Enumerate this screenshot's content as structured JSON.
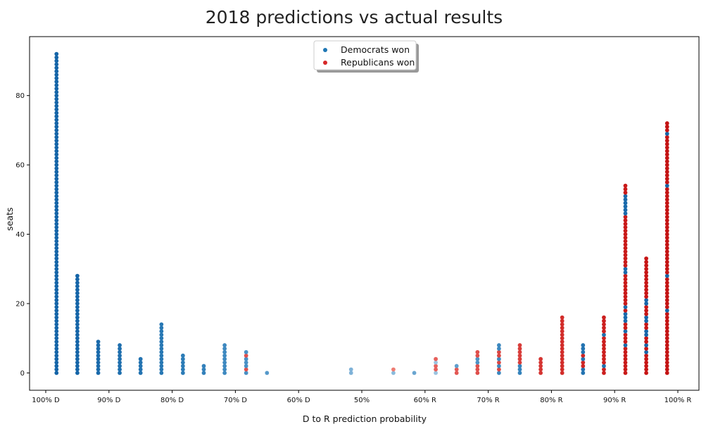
{
  "chart_data": {
    "type": "scatter",
    "title": "2018 predictions vs actual results",
    "xlabel": "D to R prediction probability",
    "ylabel": "seats",
    "x_tick_labels": [
      "100% D",
      "90% D",
      "80% D",
      "70% D",
      "60% D",
      "50%",
      "60% R",
      "70% R",
      "80% R",
      "90% R",
      "100% R"
    ],
    "y_ticks": [
      0,
      20,
      40,
      60,
      80
    ],
    "xlim": [
      0,
      100
    ],
    "ylim": [
      -5,
      97
    ],
    "legend": {
      "position": "top-center",
      "entries": [
        {
          "label": "Democrats won",
          "color": "#1f77b4"
        },
        {
          "label": "Republicans won",
          "color": "#d62728"
        }
      ]
    },
    "columns": [
      {
        "x": 1.7,
        "max_seat": 92,
        "dem_color": "#1565a8",
        "rep_color": null,
        "rep_seats": []
      },
      {
        "x": 5.0,
        "max_seat": 28,
        "dem_color": "#1565a8",
        "rep_color": null,
        "rep_seats": []
      },
      {
        "x": 8.3,
        "max_seat": 9,
        "dem_color": "#1a6aab",
        "rep_color": null,
        "rep_seats": []
      },
      {
        "x": 11.7,
        "max_seat": 8,
        "dem_color": "#1f6fae",
        "rep_color": null,
        "rep_seats": []
      },
      {
        "x": 15.0,
        "max_seat": 4,
        "dem_color": "#2373b1",
        "rep_color": null,
        "rep_seats": []
      },
      {
        "x": 18.3,
        "max_seat": 14,
        "dem_color": "#2878b4",
        "rep_color": null,
        "rep_seats": []
      },
      {
        "x": 21.7,
        "max_seat": 5,
        "dem_color": "#2c7cb7",
        "rep_color": null,
        "rep_seats": []
      },
      {
        "x": 25.0,
        "max_seat": 2,
        "dem_color": "#3381bb",
        "rep_color": null,
        "rep_seats": []
      },
      {
        "x": 28.3,
        "max_seat": 8,
        "dem_color": "#3e89c0",
        "rep_color": null,
        "rep_seats": []
      },
      {
        "x": 31.7,
        "max_seat": 6,
        "dem_color": "#4890c5",
        "rep_color": "#e0504d",
        "rep_seats": [
          1,
          5
        ]
      },
      {
        "x": 35.0,
        "max_seat": 0,
        "dem_color": "#5699ca",
        "rep_color": null,
        "rep_seats": []
      },
      {
        "x": 48.3,
        "max_seat": 1,
        "dem_color": "#7fb2d8",
        "rep_color": null,
        "rep_seats": []
      },
      {
        "x": 55.0,
        "max_seat": 1,
        "dem_color": "#8abbdc",
        "rep_color": "#ee7c72",
        "rep_seats": [
          1
        ]
      },
      {
        "x": 58.3,
        "max_seat": 0,
        "dem_color": "#6aa5d0",
        "rep_color": null,
        "rep_seats": []
      },
      {
        "x": 61.7,
        "max_seat": 4,
        "dem_color": "#9ac3e0",
        "rep_color": "#e6605b",
        "rep_seats": [
          1,
          2,
          4
        ]
      },
      {
        "x": 65.0,
        "max_seat": 2,
        "dem_color": "#5f9fcd",
        "rep_color": "#e35854",
        "rep_seats": [
          0,
          1
        ]
      },
      {
        "x": 68.3,
        "max_seat": 6,
        "dem_color": "#4d93c6",
        "rep_color": "#df4f4b",
        "rep_seats": [
          0,
          1,
          2,
          5,
          6
        ]
      },
      {
        "x": 71.7,
        "max_seat": 8,
        "dem_color": "#3d88bf",
        "rep_color": "#db4642",
        "rep_seats": [
          1,
          3,
          5,
          6
        ]
      },
      {
        "x": 75.0,
        "max_seat": 8,
        "dem_color": "#3583bc",
        "rep_color": "#d83d3a",
        "rep_seats": [
          3,
          4,
          5,
          6,
          7,
          8
        ]
      },
      {
        "x": 78.3,
        "max_seat": 4,
        "dem_color": "#2e7eb8",
        "rep_color": "#d53532",
        "rep_seats": [
          0,
          1,
          2,
          3,
          4
        ]
      },
      {
        "x": 81.7,
        "max_seat": 16,
        "dem_color": "#2a7ab5",
        "rep_color": "#d22d2a",
        "rep_seats": [
          0,
          1,
          2,
          3,
          4,
          5,
          6,
          7,
          8,
          9,
          10,
          11,
          12,
          13,
          14,
          15,
          16
        ]
      },
      {
        "x": 85.0,
        "max_seat": 8,
        "dem_color": "#2373b1",
        "rep_color": "#cf2624",
        "rep_seats": [
          2,
          3,
          5
        ]
      },
      {
        "x": 88.3,
        "max_seat": 16,
        "dem_color": "#1f70ae",
        "rep_color": "#cc201f",
        "rep_seats": [
          0,
          1,
          3,
          4,
          5,
          6,
          7,
          8,
          9,
          10,
          12,
          13,
          14,
          15,
          16
        ]
      },
      {
        "x": 91.7,
        "max_seat": 54,
        "dem_color": "#1a6aab",
        "rep_color": "#c91a19",
        "dem_seats": [
          8,
          12,
          15,
          16,
          17,
          19,
          29,
          30,
          46,
          47,
          48,
          49,
          50,
          51
        ]
      },
      {
        "x": 95.0,
        "max_seat": 33,
        "dem_color": "#1766a9",
        "rep_color": "#c71616",
        "dem_seats": [
          6,
          8,
          11,
          12,
          15,
          16,
          20,
          21
        ]
      },
      {
        "x": 98.3,
        "max_seat": 72,
        "dem_color": "#1565a8",
        "rep_color": "#c41414",
        "dem_seats": [
          18,
          28,
          54,
          69
        ]
      }
    ]
  }
}
